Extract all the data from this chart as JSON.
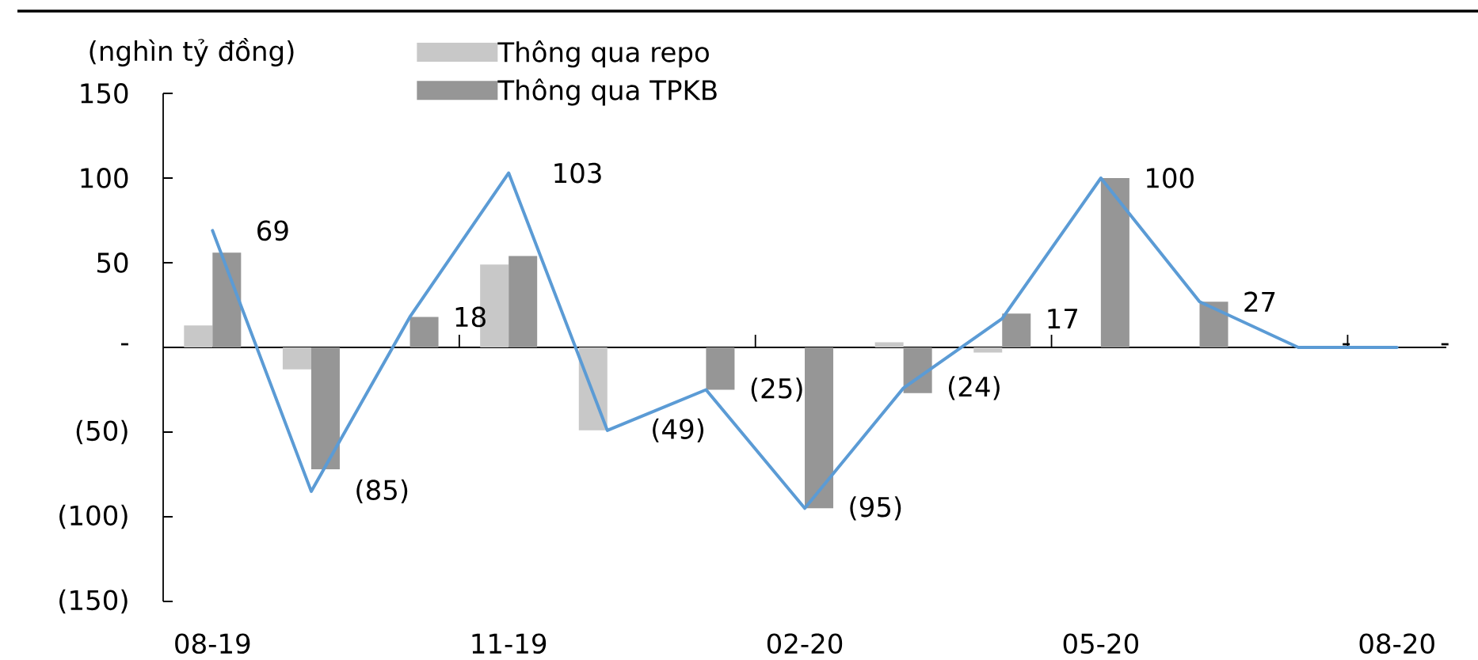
{
  "chart_data": {
    "type": "bar",
    "ylabel": "(nghìn tỷ đồng)",
    "categories": [
      "08-19",
      null,
      null,
      "11-19",
      null,
      null,
      "02-20",
      null,
      null,
      "05-20",
      null,
      null,
      "08-20"
    ],
    "series": [
      {
        "name": "Thông qua repo",
        "color": "#c8c8c8",
        "values": [
          13,
          -13,
          null,
          49,
          -49,
          null,
          null,
          3,
          -3,
          null,
          null,
          null,
          null
        ]
      },
      {
        "name": "Thông qua TPKB",
        "color": "#969696",
        "values": [
          56,
          -72,
          18,
          54,
          null,
          -25,
          -95,
          -27,
          20,
          100,
          27,
          null,
          null
        ]
      },
      {
        "type": "line",
        "color": "#5b9bd5",
        "values": [
          69,
          -85,
          18,
          103,
          -49,
          -25,
          -95,
          -24,
          17,
          100,
          27,
          0,
          0
        ],
        "value_labels": [
          "69",
          "(85)",
          "18",
          "103",
          "(49)",
          "(25)",
          "(95)",
          "(24)",
          "17",
          "100",
          "27",
          "-",
          "-"
        ]
      }
    ],
    "ylim": [
      -150,
      150
    ],
    "yticks": [
      {
        "value": -150,
        "label": "(150)"
      },
      {
        "value": -100,
        "label": "(100)"
      },
      {
        "value": -50,
        "label": "(50)"
      },
      {
        "value": 0,
        "label": "-"
      },
      50,
      100,
      150
    ],
    "legend": "top left"
  }
}
